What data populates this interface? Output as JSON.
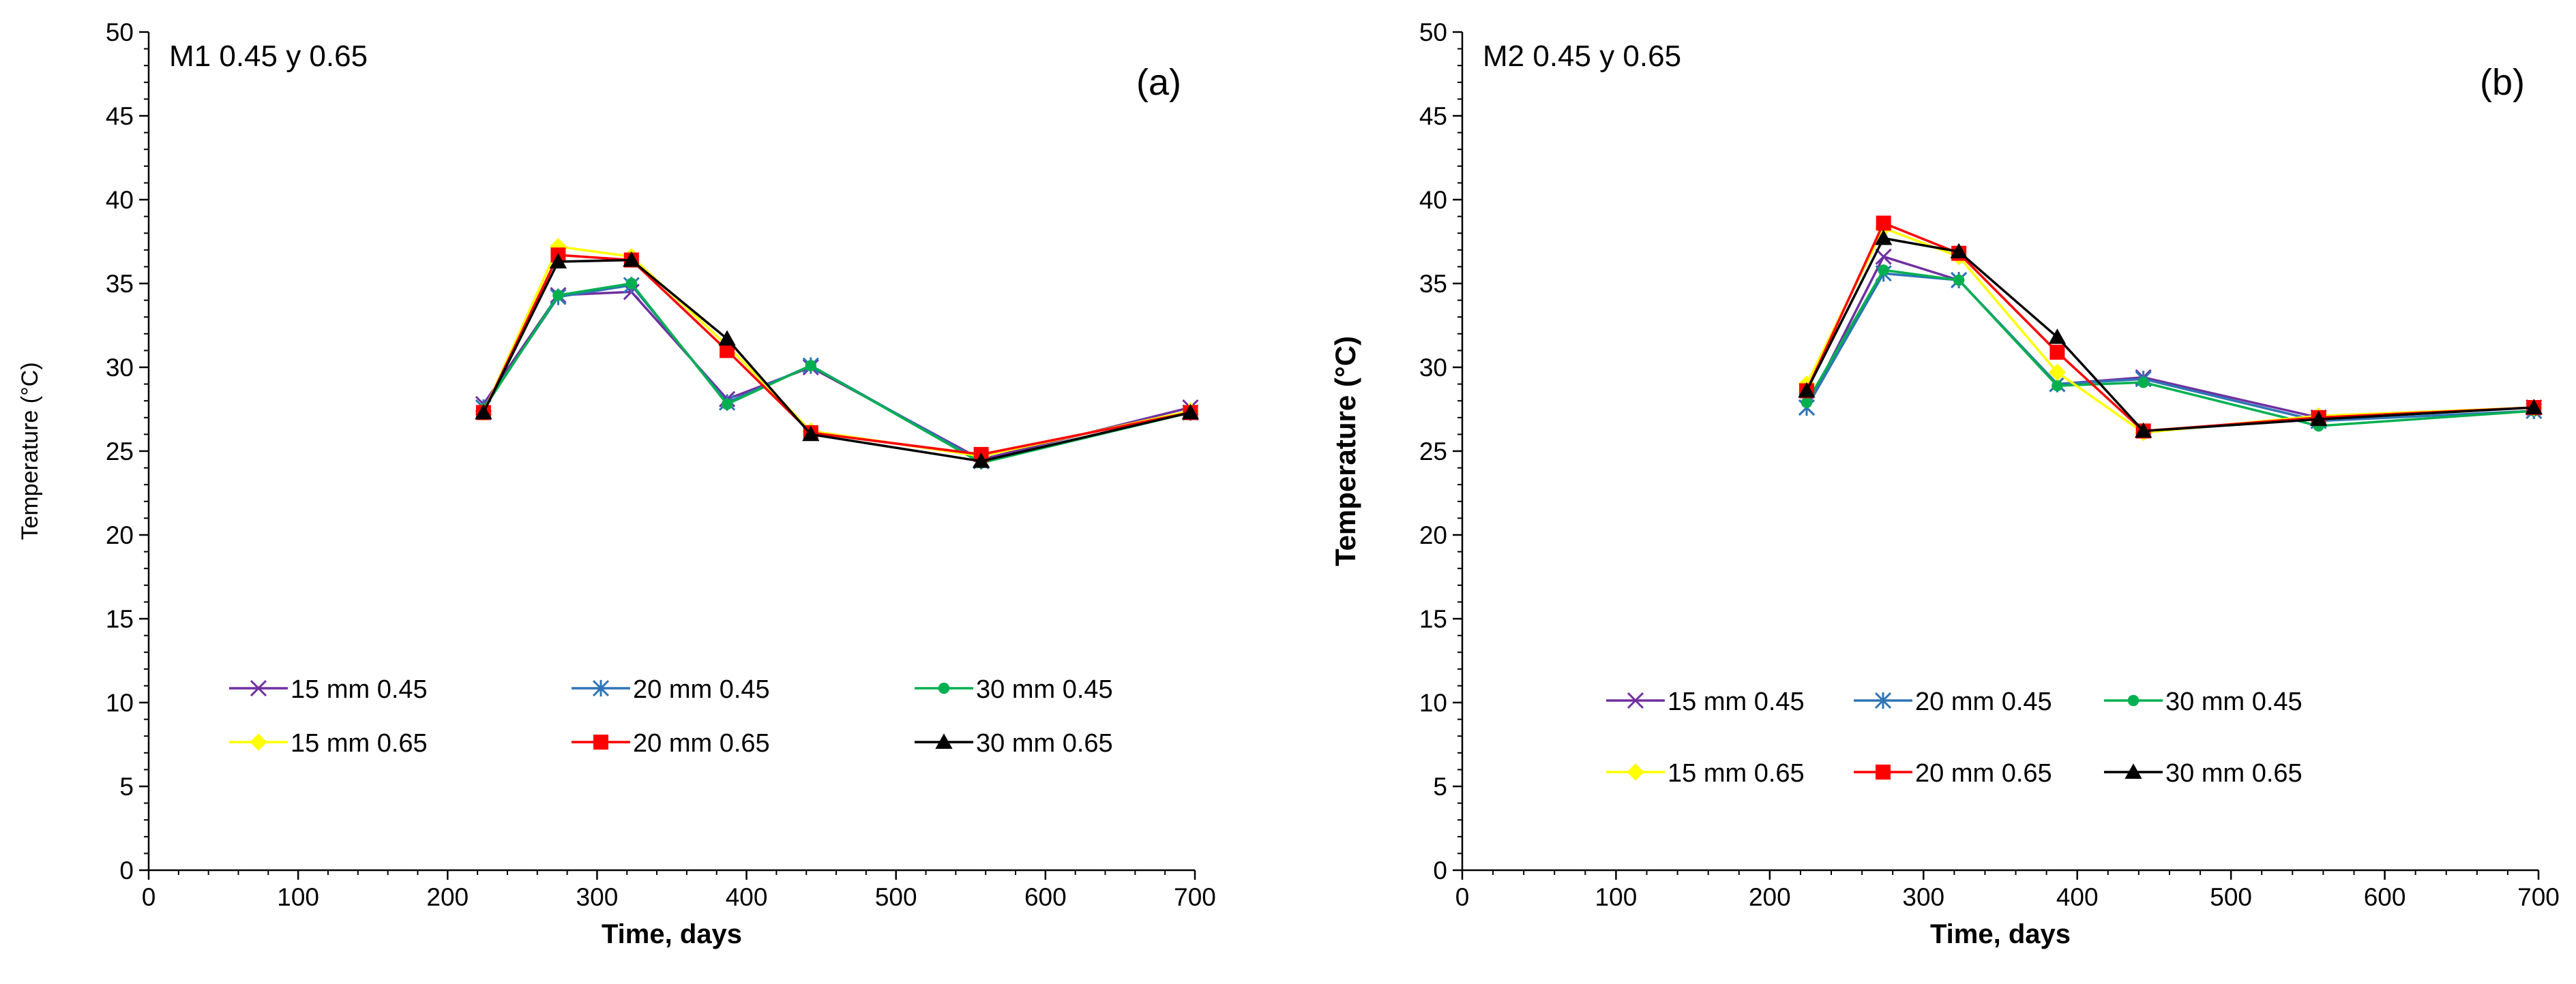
{
  "chart_data": [
    {
      "type": "line",
      "title": "M1  0.45 y 0.65",
      "panel_tag": "(a)",
      "xlabel": "Time, days",
      "ylabel": "Temperature (°C)",
      "xlim": [
        0,
        700
      ],
      "ylim": [
        0,
        50
      ],
      "xticks": [
        0,
        100,
        200,
        300,
        400,
        500,
        600,
        700
      ],
      "yticks": [
        0,
        5,
        10,
        15,
        20,
        25,
        30,
        35,
        40,
        45,
        50
      ],
      "grid": false,
      "legend": "bottom, 2 rows x 3 columns",
      "x": [
        224,
        274,
        323,
        387,
        443,
        557,
        697
      ],
      "series": [
        {
          "name": "15 mm 0.45",
          "color": "#7030A0",
          "marker": "x",
          "values": [
            27.8,
            34.3,
            34.5,
            28.1,
            30.0,
            24.5,
            27.6
          ]
        },
        {
          "name": "20 mm 0.45",
          "color": "#2E75B6",
          "marker": "asterisk",
          "values": [
            27.6,
            34.2,
            34.9,
            27.9,
            30.1,
            24.4,
            27.3
          ]
        },
        {
          "name": "30 mm 0.45",
          "color": "#00B050",
          "marker": "circle",
          "values": [
            27.5,
            34.3,
            35.0,
            27.8,
            30.1,
            24.3,
            27.3
          ]
        },
        {
          "name": "15 mm 0.65",
          "color": "#FFFF00",
          "marker": "diamond",
          "values": [
            27.3,
            37.2,
            36.6,
            31.3,
            26.2,
            24.7,
            27.4
          ]
        },
        {
          "name": "20 mm 0.65",
          "color": "#FF0000",
          "marker": "square",
          "values": [
            27.3,
            36.7,
            36.4,
            31.0,
            26.1,
            24.8,
            27.3
          ]
        },
        {
          "name": "30 mm 0.65",
          "color": "#000000",
          "marker": "triangle",
          "values": [
            27.3,
            36.3,
            36.4,
            31.7,
            26.0,
            24.4,
            27.3
          ]
        }
      ]
    },
    {
      "type": "line",
      "title": "M2  0.45 y 0.65",
      "panel_tag": "(b)",
      "xlabel": "Time, days",
      "ylabel": "Temperature (°C)",
      "xlim": [
        0,
        700
      ],
      "ylim": [
        0,
        50
      ],
      "xticks": [
        0,
        100,
        200,
        300,
        400,
        500,
        600,
        700
      ],
      "yticks": [
        0,
        5,
        10,
        15,
        20,
        25,
        30,
        35,
        40,
        45,
        50
      ],
      "grid": false,
      "legend": "bottom, 2 rows x 3 columns",
      "x": [
        224,
        274,
        323,
        387,
        443,
        557,
        697
      ],
      "series": [
        {
          "name": "15 mm 0.45",
          "color": "#7030A0",
          "marker": "x",
          "values": [
            27.6,
            36.6,
            35.2,
            29.0,
            29.4,
            27.0,
            27.6
          ]
        },
        {
          "name": "20 mm 0.45",
          "color": "#2E75B6",
          "marker": "asterisk",
          "values": [
            27.6,
            35.6,
            35.2,
            29.0,
            29.3,
            26.8,
            27.4
          ]
        },
        {
          "name": "30 mm 0.45",
          "color": "#00B050",
          "marker": "circle",
          "values": [
            27.9,
            35.8,
            35.2,
            28.9,
            29.1,
            26.5,
            27.4
          ]
        },
        {
          "name": "15 mm 0.65",
          "color": "#FFFF00",
          "marker": "diamond",
          "values": [
            29.0,
            38.3,
            36.6,
            29.7,
            26.1,
            27.1,
            27.6
          ]
        },
        {
          "name": "20 mm 0.65",
          "color": "#FF0000",
          "marker": "square",
          "values": [
            28.6,
            38.6,
            36.8,
            30.9,
            26.2,
            27.0,
            27.6
          ]
        },
        {
          "name": "30 mm 0.65",
          "color": "#000000",
          "marker": "triangle",
          "values": [
            28.6,
            37.7,
            36.9,
            31.8,
            26.2,
            26.9,
            27.6
          ]
        }
      ]
    }
  ]
}
